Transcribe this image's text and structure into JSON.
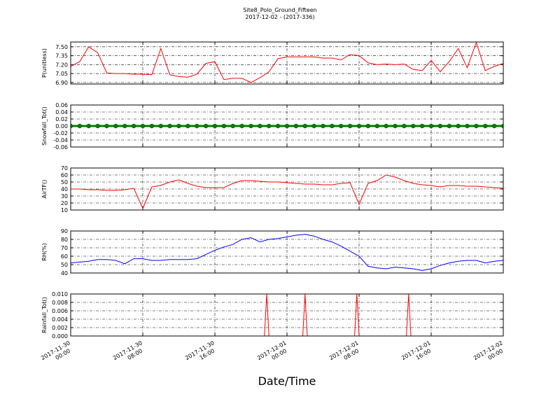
{
  "chart_data": [
    {
      "type": "line",
      "title": "Site8_Polo_Ground_Fifteen",
      "subtitle": "2017-12-02 - (2017-336)",
      "ylabel": "P(unitless)",
      "color": "#ff0000",
      "ylim": [
        6.875,
        7.58
      ],
      "yticks": [
        {
          "value": 6.9,
          "label": "6.90"
        },
        7.05,
        {
          "value": 7.2,
          "label": "7.20"
        },
        7.35,
        {
          "value": 7.5,
          "label": "7.50"
        }
      ],
      "x": [
        "2017-11-30 00:00",
        "2017-11-30 01:00",
        "2017-11-30 02:00",
        "2017-11-30 03:00",
        "2017-11-30 04:00",
        "2017-11-30 05:00",
        "2017-11-30 06:00",
        "2017-11-30 07:00",
        "2017-11-30 08:00",
        "2017-11-30 09:00",
        "2017-11-30 10:00",
        "2017-11-30 11:00",
        "2017-11-30 12:00",
        "2017-11-30 13:00",
        "2017-11-30 14:00",
        "2017-11-30 15:00",
        "2017-11-30 16:00",
        "2017-11-30 17:00",
        "2017-11-30 18:00",
        "2017-11-30 19:00",
        "2017-11-30 20:00",
        "2017-11-30 21:00",
        "2017-11-30 22:00",
        "2017-11-30 23:00",
        "2017-12-01 00:00",
        "2017-12-01 01:00",
        "2017-12-01 02:00",
        "2017-12-01 03:00",
        "2017-12-01 04:00",
        "2017-12-01 05:00",
        "2017-12-01 06:00",
        "2017-12-01 07:00",
        "2017-12-01 08:00",
        "2017-12-01 09:00",
        "2017-12-01 10:00",
        "2017-12-01 11:00",
        "2017-12-01 12:00",
        "2017-12-01 13:00",
        "2017-12-01 14:00",
        "2017-12-01 15:00",
        "2017-12-01 16:00",
        "2017-12-01 17:00",
        "2017-12-01 18:00",
        "2017-12-01 19:00",
        "2017-12-01 20:00",
        "2017-12-01 21:00",
        "2017-12-01 22:00",
        "2017-12-01 23:00",
        "2017-12-02 00:00"
      ],
      "values": [
        7.17,
        7.25,
        7.5,
        7.4,
        7.06,
        7.05,
        7.05,
        7.04,
        7.04,
        7.03,
        7.47,
        7.03,
        7.0,
        6.99,
        7.04,
        7.22,
        7.25,
        6.95,
        6.97,
        6.97,
        6.9,
        6.98,
        7.08,
        7.3,
        7.33,
        7.33,
        7.33,
        7.33,
        7.31,
        7.31,
        7.28,
        7.37,
        7.35,
        7.23,
        7.2,
        7.21,
        7.2,
        7.21,
        7.12,
        7.1,
        7.27,
        7.08,
        7.25,
        7.47,
        7.15,
        7.57,
        7.1,
        7.17,
        7.22
      ]
    },
    {
      "type": "line",
      "ylabel": "Snowfall_Tot()",
      "color": "#008000",
      "marker": "circle",
      "ylim": [
        -0.06,
        0.06
      ],
      "yticks": [
        -0.06,
        -0.04,
        -0.02,
        {
          "value": 0,
          "label": "0.00"
        },
        0.02,
        0.04,
        0.06
      ],
      "x": [
        "2017-11-30 00:00",
        "2017-11-30 01:00",
        "2017-11-30 02:00",
        "2017-11-30 03:00",
        "2017-11-30 04:00",
        "2017-11-30 05:00",
        "2017-11-30 06:00",
        "2017-11-30 07:00",
        "2017-11-30 08:00",
        "2017-11-30 09:00",
        "2017-11-30 10:00",
        "2017-11-30 11:00",
        "2017-11-30 12:00",
        "2017-11-30 13:00",
        "2017-11-30 14:00",
        "2017-11-30 15:00",
        "2017-11-30 16:00",
        "2017-11-30 17:00",
        "2017-11-30 18:00",
        "2017-11-30 19:00",
        "2017-11-30 20:00",
        "2017-11-30 21:00",
        "2017-11-30 22:00",
        "2017-11-30 23:00",
        "2017-12-01 00:00",
        "2017-12-01 01:00",
        "2017-12-01 02:00",
        "2017-12-01 03:00",
        "2017-12-01 04:00",
        "2017-12-01 05:00",
        "2017-12-01 06:00",
        "2017-12-01 07:00",
        "2017-12-01 08:00",
        "2017-12-01 09:00",
        "2017-12-01 10:00",
        "2017-12-01 11:00",
        "2017-12-01 12:00",
        "2017-12-01 13:00",
        "2017-12-01 14:00",
        "2017-12-01 15:00",
        "2017-12-01 16:00",
        "2017-12-01 17:00",
        "2017-12-01 18:00",
        "2017-12-01 19:00",
        "2017-12-01 20:00",
        "2017-12-01 21:00",
        "2017-12-01 22:00",
        "2017-12-01 23:00",
        "2017-12-02 00:00"
      ],
      "values": [
        0,
        0,
        0,
        0,
        0,
        0,
        0,
        0,
        0,
        0,
        0,
        0,
        0,
        0,
        0,
        0,
        0,
        0,
        0,
        0,
        0,
        0,
        0,
        0,
        0,
        0,
        0,
        0,
        0,
        0,
        0,
        0,
        0,
        0,
        0,
        0,
        0,
        0,
        0,
        0,
        0,
        0,
        0,
        0,
        0,
        0,
        0,
        0,
        0
      ]
    },
    {
      "type": "line",
      "ylabel": "AirTF()",
      "color": "#ff0000",
      "ylim": [
        10,
        70
      ],
      "yticks": [
        10,
        20,
        30,
        40,
        50,
        60,
        70
      ],
      "x": [
        "2017-11-30 00:00",
        "2017-11-30 01:00",
        "2017-11-30 02:00",
        "2017-11-30 03:00",
        "2017-11-30 04:00",
        "2017-11-30 05:00",
        "2017-11-30 06:00",
        "2017-11-30 07:00",
        "2017-11-30 08:00",
        "2017-11-30 09:00",
        "2017-11-30 10:00",
        "2017-11-30 11:00",
        "2017-11-30 12:00",
        "2017-11-30 13:00",
        "2017-11-30 14:00",
        "2017-11-30 15:00",
        "2017-11-30 16:00",
        "2017-11-30 17:00",
        "2017-11-30 18:00",
        "2017-11-30 19:00",
        "2017-11-30 20:00",
        "2017-11-30 21:00",
        "2017-11-30 22:00",
        "2017-11-30 23:00",
        "2017-12-01 00:00",
        "2017-12-01 01:00",
        "2017-12-01 02:00",
        "2017-12-01 03:00",
        "2017-12-01 04:00",
        "2017-12-01 05:00",
        "2017-12-01 06:00",
        "2017-12-01 07:00",
        "2017-12-01 08:00",
        "2017-12-01 09:00",
        "2017-12-01 10:00",
        "2017-12-01 11:00",
        "2017-12-01 12:00",
        "2017-12-01 13:00",
        "2017-12-01 14:00",
        "2017-12-01 15:00",
        "2017-12-01 16:00",
        "2017-12-01 17:00",
        "2017-12-01 18:00",
        "2017-12-01 19:00",
        "2017-12-01 20:00",
        "2017-12-01 21:00",
        "2017-12-01 22:00",
        "2017-12-01 23:00",
        "2017-12-02 00:00"
      ],
      "values": [
        40,
        40,
        39,
        39,
        38,
        38,
        39,
        41,
        12,
        43,
        45,
        50,
        53,
        48,
        44,
        42,
        42,
        42,
        48,
        52,
        52,
        51,
        50,
        50,
        49,
        48,
        47,
        47,
        46,
        46,
        48,
        49,
        18,
        48,
        52,
        60,
        57,
        52,
        48,
        46,
        45,
        43,
        45,
        45,
        44,
        44,
        43,
        42,
        41
      ]
    },
    {
      "type": "line",
      "ylabel": "RH(%)",
      "color": "#0000ff",
      "ylim": [
        40,
        90
      ],
      "yticks": [
        40,
        50,
        60,
        70,
        80,
        90
      ],
      "x": [
        "2017-11-30 00:00",
        "2017-11-30 01:00",
        "2017-11-30 02:00",
        "2017-11-30 03:00",
        "2017-11-30 04:00",
        "2017-11-30 05:00",
        "2017-11-30 06:00",
        "2017-11-30 07:00",
        "2017-11-30 08:00",
        "2017-11-30 09:00",
        "2017-11-30 10:00",
        "2017-11-30 11:00",
        "2017-11-30 12:00",
        "2017-11-30 13:00",
        "2017-11-30 14:00",
        "2017-11-30 15:00",
        "2017-11-30 16:00",
        "2017-11-30 17:00",
        "2017-11-30 18:00",
        "2017-11-30 19:00",
        "2017-11-30 20:00",
        "2017-11-30 21:00",
        "2017-11-30 22:00",
        "2017-11-30 23:00",
        "2017-12-01 00:00",
        "2017-12-01 01:00",
        "2017-12-01 02:00",
        "2017-12-01 03:00",
        "2017-12-01 04:00",
        "2017-12-01 05:00",
        "2017-12-01 06:00",
        "2017-12-01 07:00",
        "2017-12-01 08:00",
        "2017-12-01 09:00",
        "2017-12-01 10:00",
        "2017-12-01 11:00",
        "2017-12-01 12:00",
        "2017-12-01 13:00",
        "2017-12-01 14:00",
        "2017-12-01 15:00",
        "2017-12-01 16:00",
        "2017-12-01 17:00",
        "2017-12-01 18:00",
        "2017-12-01 19:00",
        "2017-12-01 20:00",
        "2017-12-01 21:00",
        "2017-12-01 22:00",
        "2017-12-01 23:00",
        "2017-12-02 00:00"
      ],
      "values": [
        52,
        53,
        54,
        56,
        56,
        55,
        51,
        57,
        57,
        55,
        55,
        56,
        56,
        56,
        57,
        62,
        67,
        71,
        74,
        80,
        82,
        77,
        80,
        81,
        83,
        85,
        86,
        84,
        80,
        77,
        72,
        66,
        60,
        48,
        46,
        45,
        47,
        46,
        45,
        43,
        45,
        49,
        52,
        54,
        55,
        55,
        52,
        54,
        55
      ]
    },
    {
      "type": "line",
      "ylabel": "Rainfall_Tot()",
      "xlabel": "Date/Time",
      "color": "#ff0000",
      "ylim": [
        0,
        0.01
      ],
      "yticks": [
        {
          "value": 0,
          "label": "0.000"
        },
        {
          "value": 0.002,
          "label": "0.002"
        },
        {
          "value": 0.004,
          "label": "0.004"
        },
        {
          "value": 0.006,
          "label": "0.006"
        },
        {
          "value": 0.008,
          "label": "0.008"
        },
        {
          "value": 0.01,
          "label": "0.010"
        }
      ],
      "xlim": [
        "2017-11-30 00:00",
        "2017-12-02 00:00"
      ],
      "xticks": [
        "2017-11-30 00:00",
        "2017-11-30 08:00",
        "2017-11-30 16:00",
        "2017-12-01 00:00",
        "2017-12-01 08:00",
        "2017-12-01 16:00",
        "2017-12-02 00:00"
      ],
      "x": [
        "2017-11-30 00:00",
        "2017-11-30 21:30",
        "2017-11-30 21:45",
        "2017-11-30 22:00",
        "2017-12-01 01:45",
        "2017-12-01 02:00",
        "2017-12-01 02:15",
        "2017-12-01 07:30",
        "2017-12-01 07:45",
        "2017-12-01 08:00",
        "2017-12-01 13:15",
        "2017-12-01 13:30",
        "2017-12-01 13:45",
        "2017-12-02 00:00"
      ],
      "values": [
        0,
        0,
        0.01,
        0,
        0,
        0.01,
        0,
        0,
        0.01,
        0,
        0,
        0.01,
        0,
        0
      ]
    }
  ]
}
